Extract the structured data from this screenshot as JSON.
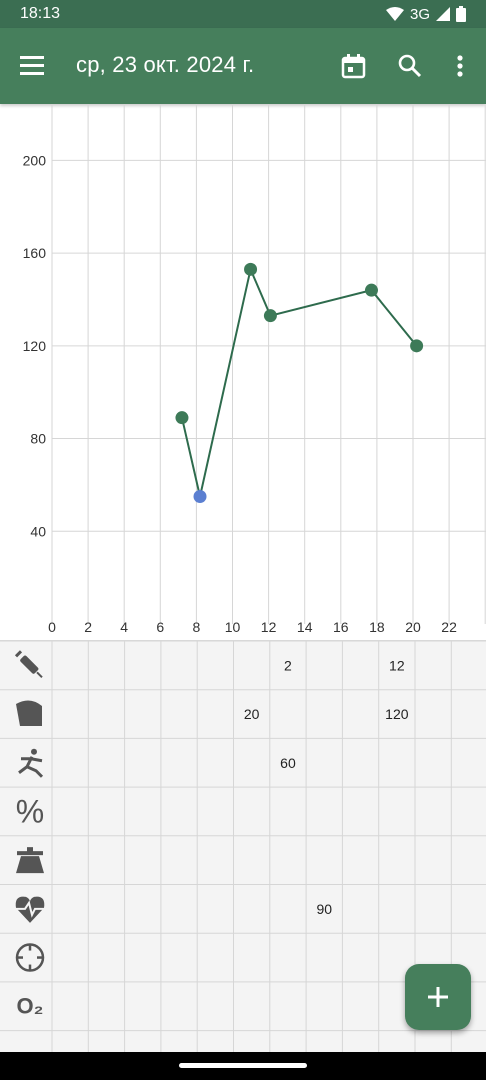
{
  "status": {
    "time": "18:13",
    "network": "3G"
  },
  "appbar": {
    "title": "ср, 23 окт. 2024 г."
  },
  "chart_data": {
    "type": "line",
    "x": [
      7.2,
      8.2,
      11,
      12.1,
      17.7,
      20.2
    ],
    "y": [
      89,
      55,
      153,
      133,
      144,
      120
    ],
    "highlight_index": 1,
    "xlim": [
      0,
      24
    ],
    "ylim": [
      0,
      220
    ],
    "x_ticks": [
      0,
      2,
      4,
      6,
      8,
      10,
      12,
      14,
      16,
      18,
      20,
      22
    ],
    "y_ticks": [
      40,
      80,
      120,
      160,
      200
    ],
    "grid": true,
    "line_color": "#2e6b4d",
    "point_color": "#3d7a58",
    "highlight_color": "#5b7fd1"
  },
  "table": {
    "rows": [
      {
        "icon": "syringe-icon",
        "label": "",
        "cells": [
          {
            "col": 6,
            "value": "2"
          },
          {
            "col": 9,
            "value": "12"
          }
        ]
      },
      {
        "icon": "bread-icon",
        "label": "",
        "cells": [
          {
            "col": 5,
            "value": "20"
          },
          {
            "col": 9,
            "value": "120"
          }
        ]
      },
      {
        "icon": "running-person-icon",
        "label": "",
        "cells": [
          {
            "col": 6,
            "value": "60"
          }
        ]
      },
      {
        "icon": "percent-icon",
        "label": "%",
        "cells": []
      },
      {
        "icon": "scale-icon",
        "label": "",
        "cells": []
      },
      {
        "icon": "heart-pulse-icon",
        "label": "",
        "cells": [
          {
            "col": 7,
            "value": "90"
          }
        ]
      },
      {
        "icon": "clock-dial-icon",
        "label": "",
        "cells": []
      },
      {
        "icon": "oxygen-icon",
        "label": "O₂",
        "cells": []
      }
    ]
  },
  "fab": {
    "icon": "plus-icon",
    "label": "+"
  },
  "colors": {
    "appbar": "#467f5c",
    "statusbar": "#3b6e52",
    "grid": "#d6d6d6"
  }
}
